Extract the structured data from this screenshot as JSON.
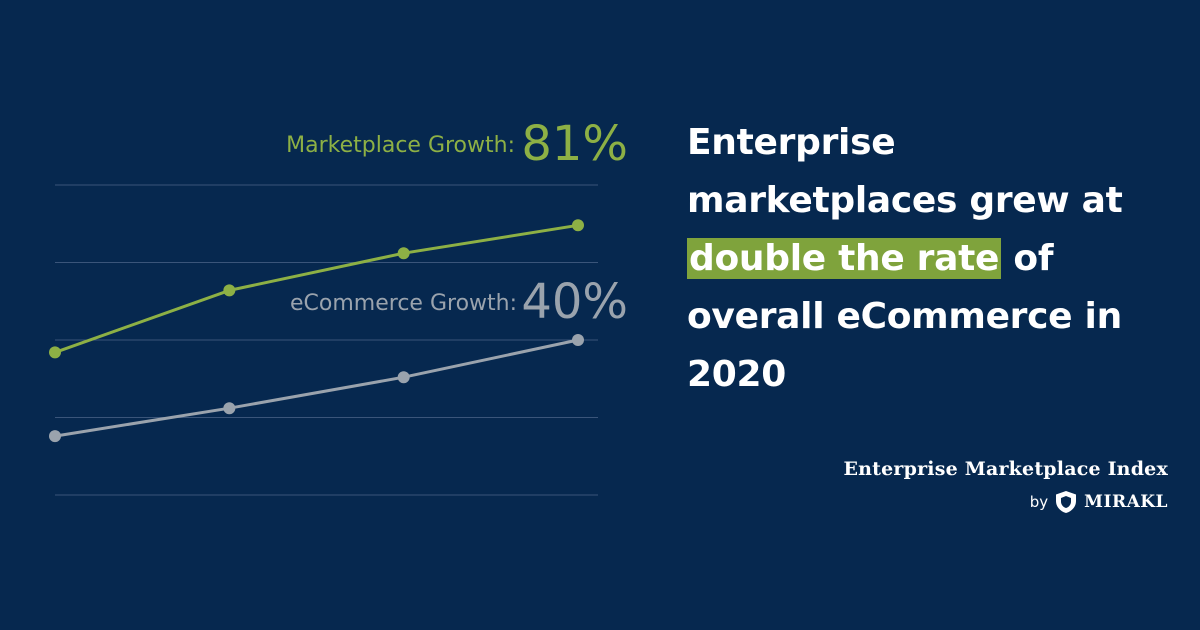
{
  "chart_data": {
    "type": "line",
    "title": "",
    "xlabel": "",
    "ylabel": "",
    "x": [
      1,
      2,
      3,
      4
    ],
    "ylim": [
      0,
      100
    ],
    "grid": true,
    "series": [
      {
        "name": "Marketplace Growth:",
        "value_label": "81%",
        "values": [
          46,
          66,
          78,
          87
        ],
        "color": "#8db045"
      },
      {
        "name": "eCommerce Growth:",
        "value_label": "40%",
        "values": [
          19,
          28,
          38,
          50
        ],
        "color": "#9aa3ad"
      }
    ]
  },
  "headline": {
    "before": "Enterprise marketplaces grew at ",
    "highlight": "double the rate",
    "after": " of overall eCommerce in 2020"
  },
  "brand": {
    "title": "Enterprise Marketplace Index",
    "by": "by",
    "name": "MIRAKL",
    "logo_icon": "mirakl-shield-icon"
  },
  "colors": {
    "background": "#06284f",
    "highlight": "#7fa33c",
    "gridline": "#3a557a"
  }
}
